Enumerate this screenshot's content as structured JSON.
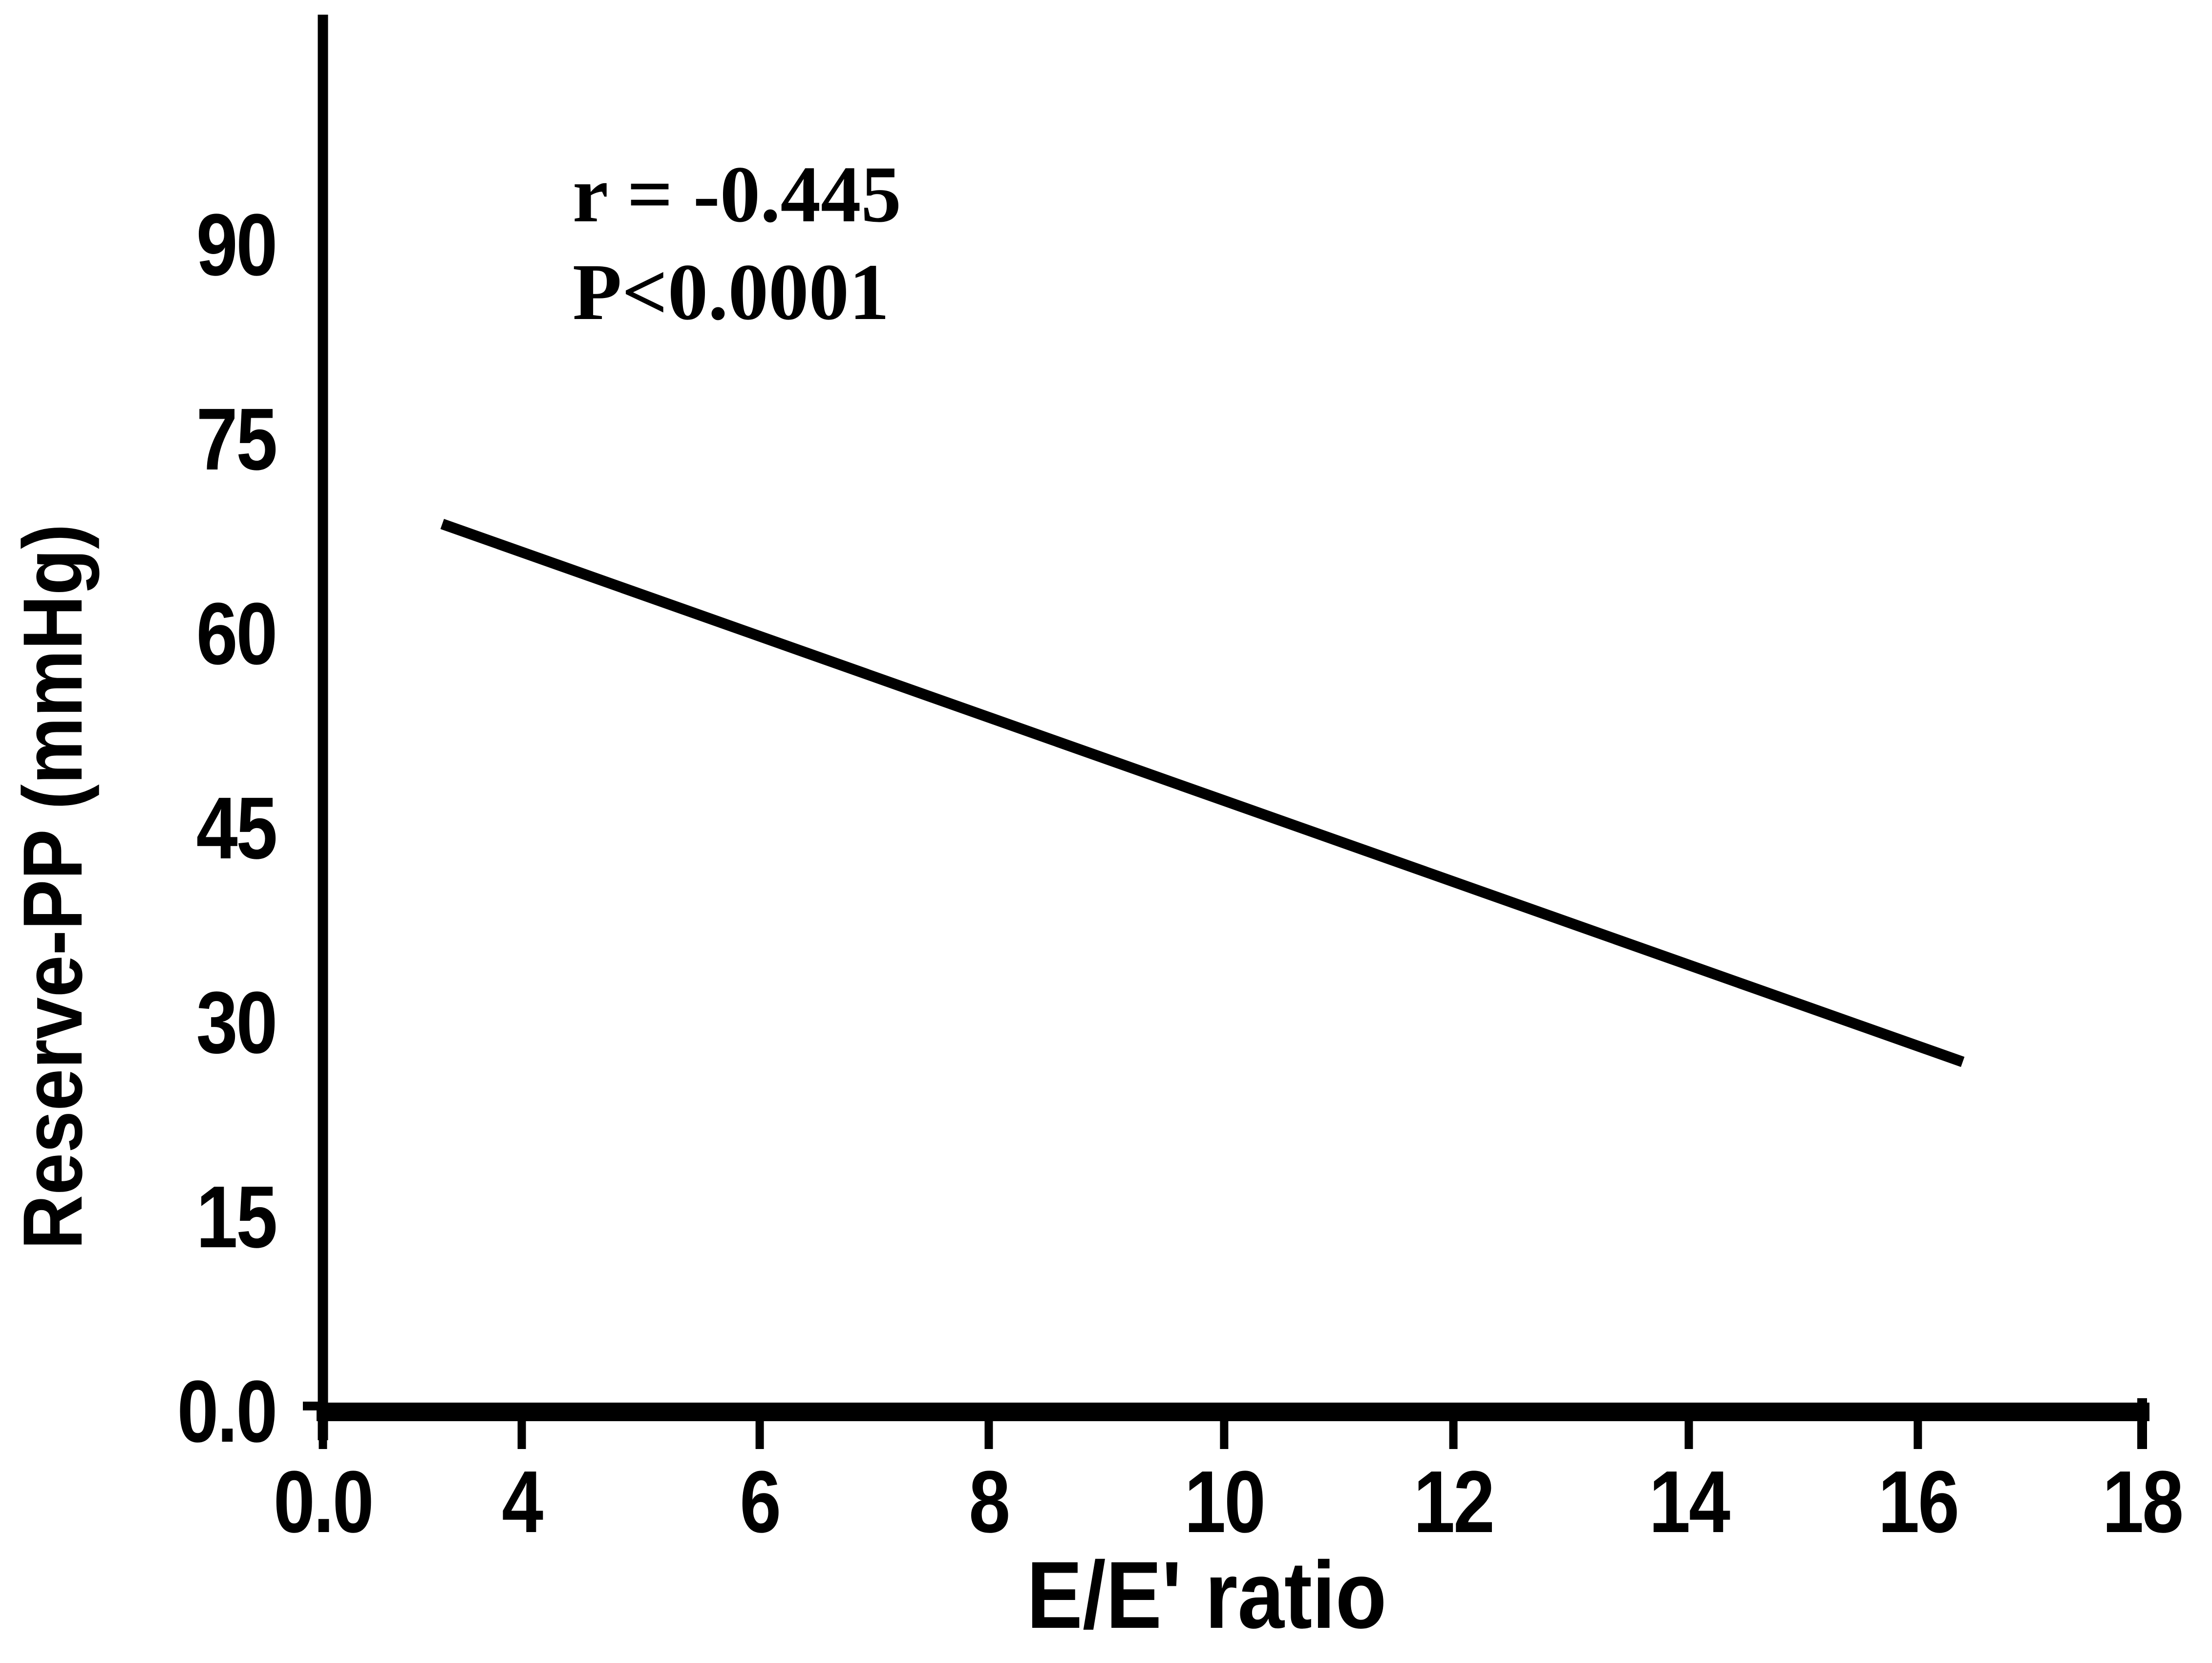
{
  "page": {
    "background_color": "#ffffff",
    "ink_color": "#000000"
  },
  "chart": {
    "annotation": {
      "line1": "r = -0.445",
      "line2": "P<0.0001"
    },
    "y_axis": {
      "title": "Reserve-PP (mmHg)",
      "tick_labels": [
        "90",
        "75",
        "60",
        "45",
        "30",
        "15",
        "0.0"
      ]
    },
    "x_axis": {
      "title": "E/E' ratio",
      "tick_labels": [
        "0.0",
        "4",
        "6",
        "8",
        "10",
        "12",
        "14",
        "16",
        "18"
      ]
    }
  },
  "chart_data": {
    "type": "line",
    "title": "",
    "xlabel": "E/E' ratio",
    "ylabel": "Reserve-PP (mmHg)",
    "x_ticks": [
      0.0,
      4,
      6,
      8,
      10,
      12,
      14,
      16,
      18
    ],
    "y_ticks": [
      90,
      75,
      60,
      45,
      30,
      15,
      0.0
    ],
    "xlim": [
      0,
      18
    ],
    "ylim": [
      0,
      97
    ],
    "grid": false,
    "legend": false,
    "series": [
      {
        "name": "regression-line",
        "type": "line",
        "points": [
          [
            2.4,
            68.5
          ],
          [
            16.4,
            27.0
          ]
        ]
      }
    ],
    "annotations": [
      {
        "text": "r = -0.445"
      },
      {
        "text": "P<0.0001"
      }
    ],
    "notes": "Straight regression (trend) line only, no scatter markers. X tick spacing is visually uniform even though the first interval spans 0-4 and later intervals span 2 units."
  }
}
